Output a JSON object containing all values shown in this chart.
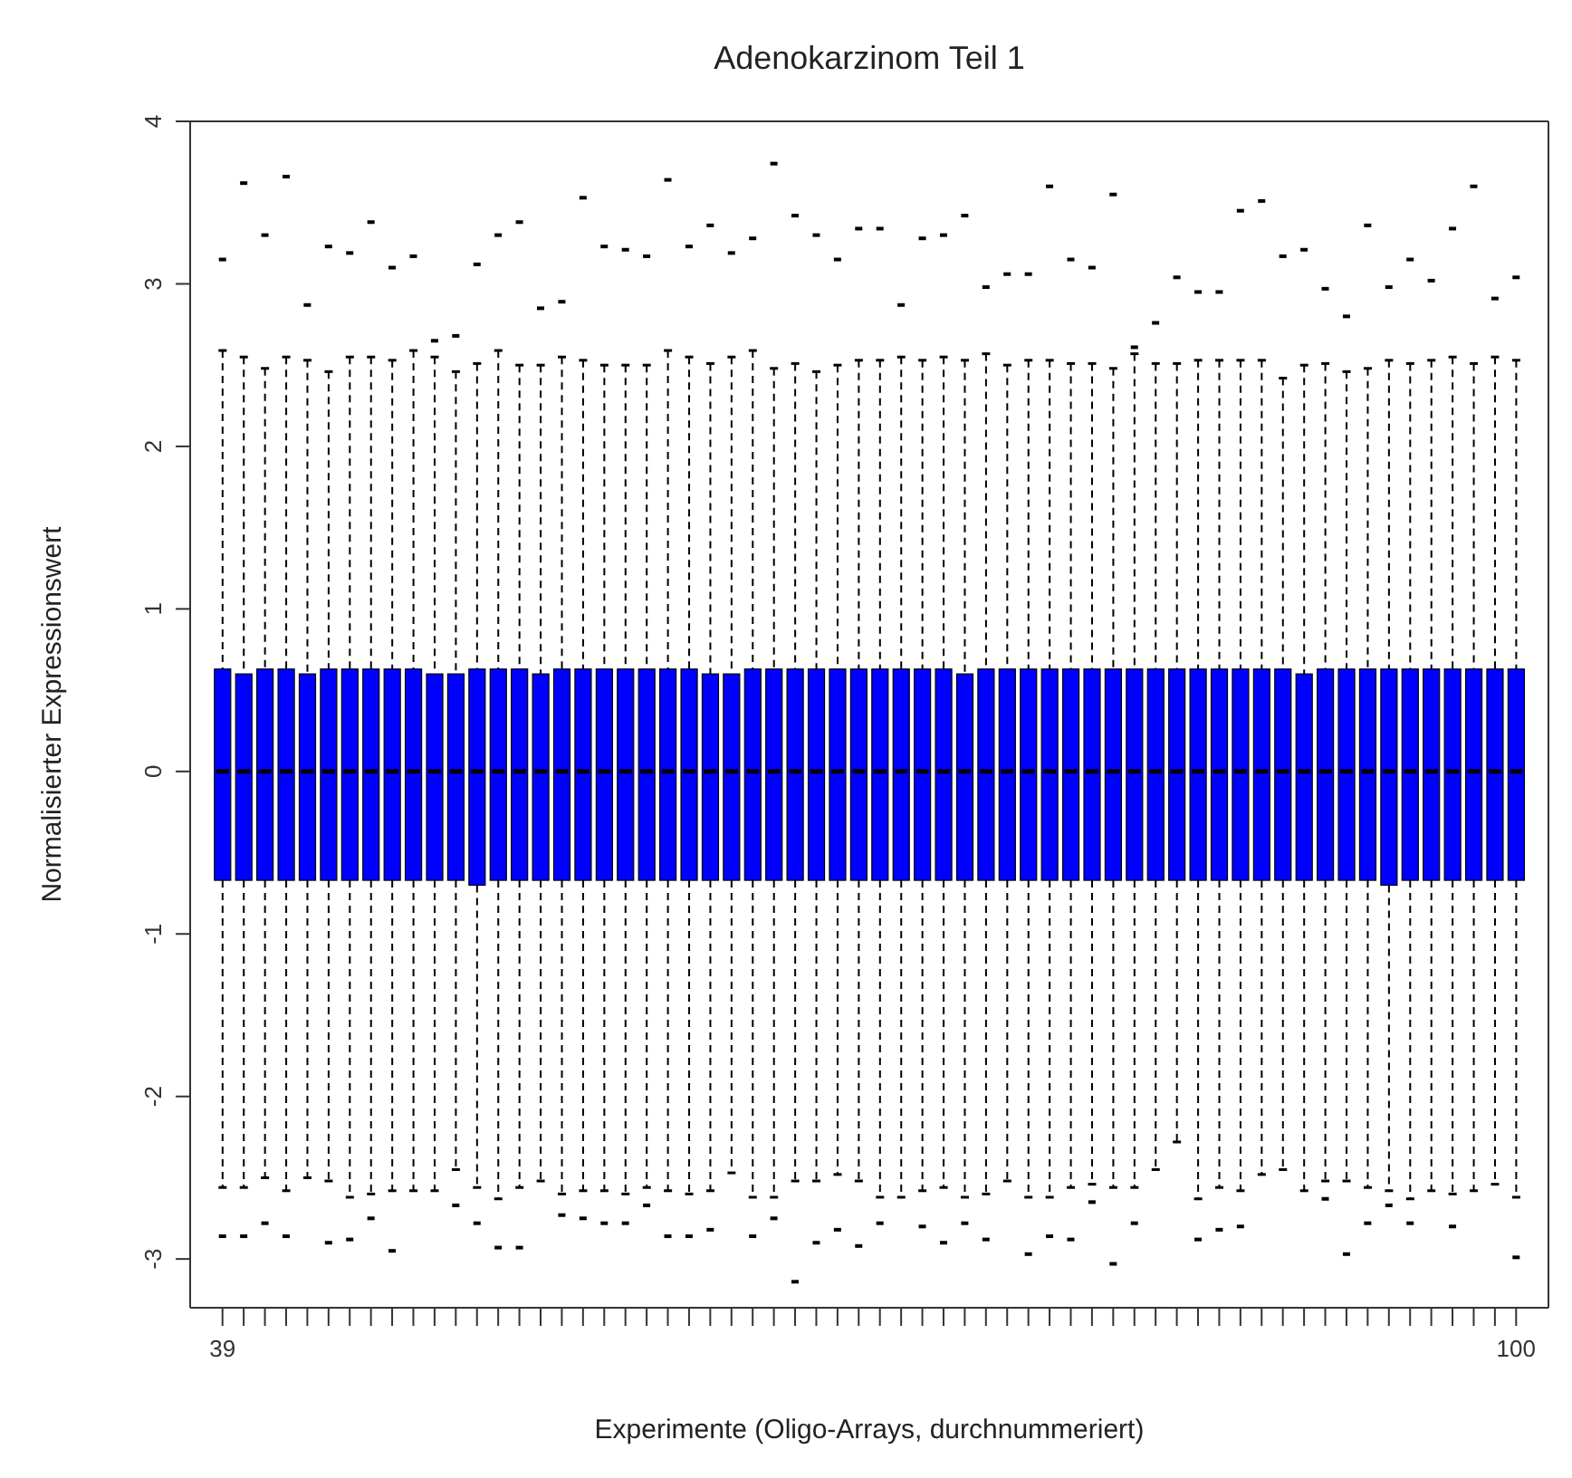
{
  "chart_data": {
    "type": "box",
    "title": "Adenokarzinom Teil 1",
    "xlabel": "Experimente (Oligo-Arrays, durchnummeriert)",
    "ylabel": "Normalisierter Expressionswert",
    "color": "#0000ff",
    "categories": [
      "39",
      null,
      null,
      null,
      null,
      null,
      null,
      null,
      null,
      null,
      null,
      null,
      null,
      null,
      null,
      null,
      null,
      null,
      null,
      null,
      null,
      null,
      null,
      null,
      null,
      null,
      null,
      null,
      null,
      null,
      null,
      null,
      null,
      null,
      null,
      null,
      null,
      null,
      null,
      null,
      null,
      null,
      null,
      null,
      null,
      null,
      null,
      null,
      null,
      null,
      null,
      null,
      null,
      null,
      null,
      null,
      null,
      null,
      null,
      null,
      null,
      "100"
    ],
    "ylim": [
      -3.3,
      4.0
    ],
    "yticks": [
      -3,
      -2,
      -1,
      0,
      1,
      2,
      3,
      4
    ],
    "boxes": [
      {
        "low": -2.56,
        "q1": -0.67,
        "median": 0,
        "q3": 0.63,
        "high": 2.59,
        "outliers": [
          3.15,
          -2.86
        ]
      },
      {
        "low": -2.56,
        "q1": -0.67,
        "median": 0,
        "q3": 0.6,
        "high": 2.55,
        "outliers": [
          3.62,
          -2.86
        ]
      },
      {
        "low": -2.5,
        "q1": -0.67,
        "median": 0,
        "q3": 0.63,
        "high": 2.48,
        "outliers": [
          3.3,
          -2.78
        ]
      },
      {
        "low": -2.58,
        "q1": -0.67,
        "median": 0,
        "q3": 0.63,
        "high": 2.55,
        "outliers": [
          3.66,
          -2.86
        ]
      },
      {
        "low": -2.5,
        "q1": -0.67,
        "median": 0,
        "q3": 0.6,
        "high": 2.53,
        "outliers": [
          2.87
        ]
      },
      {
        "low": -2.52,
        "q1": -0.67,
        "median": 0,
        "q3": 0.63,
        "high": 2.46,
        "outliers": [
          3.23,
          -2.9
        ]
      },
      {
        "low": -2.62,
        "q1": -0.67,
        "median": 0,
        "q3": 0.63,
        "high": 2.55,
        "outliers": [
          3.19,
          -2.88
        ]
      },
      {
        "low": -2.6,
        "q1": -0.67,
        "median": 0,
        "q3": 0.63,
        "high": 2.55,
        "outliers": [
          3.38,
          -2.75
        ]
      },
      {
        "low": -2.58,
        "q1": -0.67,
        "median": 0,
        "q3": 0.63,
        "high": 2.53,
        "outliers": [
          3.1,
          -2.95
        ]
      },
      {
        "low": -2.58,
        "q1": -0.67,
        "median": 0,
        "q3": 0.63,
        "high": 2.59,
        "outliers": [
          3.17
        ]
      },
      {
        "low": -2.58,
        "q1": -0.67,
        "median": 0,
        "q3": 0.6,
        "high": 2.55,
        "outliers": [
          2.65
        ]
      },
      {
        "low": -2.45,
        "q1": -0.67,
        "median": 0,
        "q3": 0.6,
        "high": 2.46,
        "outliers": [
          2.68,
          -2.67
        ]
      },
      {
        "low": -2.56,
        "q1": -0.7,
        "median": 0,
        "q3": 0.63,
        "high": 2.51,
        "outliers": [
          3.12,
          -2.78
        ]
      },
      {
        "low": -2.63,
        "q1": -0.67,
        "median": 0,
        "q3": 0.63,
        "high": 2.59,
        "outliers": [
          3.3,
          -2.93
        ]
      },
      {
        "low": -2.56,
        "q1": -0.67,
        "median": 0,
        "q3": 0.63,
        "high": 2.5,
        "outliers": [
          3.38,
          -2.93
        ]
      },
      {
        "low": -2.52,
        "q1": -0.67,
        "median": 0,
        "q3": 0.6,
        "high": 2.5,
        "outliers": [
          2.85
        ]
      },
      {
        "low": -2.6,
        "q1": -0.67,
        "median": 0,
        "q3": 0.63,
        "high": 2.55,
        "outliers": [
          2.89,
          -2.73
        ]
      },
      {
        "low": -2.58,
        "q1": -0.67,
        "median": 0,
        "q3": 0.63,
        "high": 2.53,
        "outliers": [
          3.53,
          -2.75
        ]
      },
      {
        "low": -2.58,
        "q1": -0.67,
        "median": 0,
        "q3": 0.63,
        "high": 2.5,
        "outliers": [
          3.23,
          -2.78
        ]
      },
      {
        "low": -2.6,
        "q1": -0.67,
        "median": 0,
        "q3": 0.63,
        "high": 2.5,
        "outliers": [
          3.21,
          -2.78
        ]
      },
      {
        "low": -2.56,
        "q1": -0.67,
        "median": 0,
        "q3": 0.63,
        "high": 2.5,
        "outliers": [
          3.17,
          -2.67
        ]
      },
      {
        "low": -2.58,
        "q1": -0.67,
        "median": 0,
        "q3": 0.63,
        "high": 2.59,
        "outliers": [
          3.64,
          -2.86
        ]
      },
      {
        "low": -2.6,
        "q1": -0.67,
        "median": 0,
        "q3": 0.63,
        "high": 2.55,
        "outliers": [
          3.23,
          -2.86
        ]
      },
      {
        "low": -2.58,
        "q1": -0.67,
        "median": 0,
        "q3": 0.6,
        "high": 2.51,
        "outliers": [
          3.36,
          -2.82
        ]
      },
      {
        "low": -2.47,
        "q1": -0.67,
        "median": 0,
        "q3": 0.6,
        "high": 2.55,
        "outliers": [
          3.19
        ]
      },
      {
        "low": -2.62,
        "q1": -0.67,
        "median": 0,
        "q3": 0.63,
        "high": 2.59,
        "outliers": [
          3.28,
          -2.86
        ]
      },
      {
        "low": -2.62,
        "q1": -0.67,
        "median": 0,
        "q3": 0.63,
        "high": 2.48,
        "outliers": [
          3.74,
          -2.75
        ]
      },
      {
        "low": -2.52,
        "q1": -0.67,
        "median": 0,
        "q3": 0.63,
        "high": 2.51,
        "outliers": [
          3.42,
          -3.14
        ]
      },
      {
        "low": -2.52,
        "q1": -0.67,
        "median": 0,
        "q3": 0.63,
        "high": 2.46,
        "outliers": [
          3.3,
          -2.9
        ]
      },
      {
        "low": -2.48,
        "q1": -0.67,
        "median": 0,
        "q3": 0.63,
        "high": 2.5,
        "outliers": [
          3.15,
          -2.82
        ]
      },
      {
        "low": -2.52,
        "q1": -0.67,
        "median": 0,
        "q3": 0.63,
        "high": 2.53,
        "outliers": [
          3.34,
          -2.92
        ]
      },
      {
        "low": -2.62,
        "q1": -0.67,
        "median": 0,
        "q3": 0.63,
        "high": 2.53,
        "outliers": [
          3.34,
          -2.78
        ]
      },
      {
        "low": -2.62,
        "q1": -0.67,
        "median": 0,
        "q3": 0.63,
        "high": 2.55,
        "outliers": [
          2.87
        ]
      },
      {
        "low": -2.58,
        "q1": -0.67,
        "median": 0,
        "q3": 0.63,
        "high": 2.53,
        "outliers": [
          3.28,
          -2.8
        ]
      },
      {
        "low": -2.56,
        "q1": -0.67,
        "median": 0,
        "q3": 0.63,
        "high": 2.55,
        "outliers": [
          3.3,
          -2.9
        ]
      },
      {
        "low": -2.62,
        "q1": -0.67,
        "median": 0,
        "q3": 0.6,
        "high": 2.53,
        "outliers": [
          3.42,
          -2.78
        ]
      },
      {
        "low": -2.6,
        "q1": -0.67,
        "median": 0,
        "q3": 0.63,
        "high": 2.57,
        "outliers": [
          2.98,
          -2.88
        ]
      },
      {
        "low": -2.52,
        "q1": -0.67,
        "median": 0,
        "q3": 0.63,
        "high": 2.5,
        "outliers": [
          3.06
        ]
      },
      {
        "low": -2.62,
        "q1": -0.67,
        "median": 0,
        "q3": 0.63,
        "high": 2.53,
        "outliers": [
          3.06,
          -2.97
        ]
      },
      {
        "low": -2.62,
        "q1": -0.67,
        "median": 0,
        "q3": 0.63,
        "high": 2.53,
        "outliers": [
          3.6,
          -2.86
        ]
      },
      {
        "low": -2.56,
        "q1": -0.67,
        "median": 0,
        "q3": 0.63,
        "high": 2.51,
        "outliers": [
          3.15,
          -2.88
        ]
      },
      {
        "low": -2.54,
        "q1": -0.67,
        "median": 0,
        "q3": 0.63,
        "high": 2.51,
        "outliers": [
          3.1,
          -2.65
        ]
      },
      {
        "low": -2.56,
        "q1": -0.67,
        "median": 0,
        "q3": 0.63,
        "high": 2.48,
        "outliers": [
          3.55,
          -3.03
        ]
      },
      {
        "low": -2.56,
        "q1": -0.67,
        "median": 0,
        "q3": 0.63,
        "high": 2.57,
        "outliers": [
          2.61,
          -2.78
        ]
      },
      {
        "low": -2.45,
        "q1": -0.67,
        "median": 0,
        "q3": 0.63,
        "high": 2.51,
        "outliers": [
          2.76
        ]
      },
      {
        "low": -2.28,
        "q1": -0.67,
        "median": 0,
        "q3": 0.63,
        "high": 2.51,
        "outliers": [
          3.04
        ]
      },
      {
        "low": -2.63,
        "q1": -0.67,
        "median": 0,
        "q3": 0.63,
        "high": 2.53,
        "outliers": [
          2.95,
          -2.88
        ]
      },
      {
        "low": -2.56,
        "q1": -0.67,
        "median": 0,
        "q3": 0.63,
        "high": 2.53,
        "outliers": [
          2.95,
          -2.82
        ]
      },
      {
        "low": -2.58,
        "q1": -0.67,
        "median": 0,
        "q3": 0.63,
        "high": 2.53,
        "outliers": [
          3.45,
          -2.8
        ]
      },
      {
        "low": -2.48,
        "q1": -0.67,
        "median": 0,
        "q3": 0.63,
        "high": 2.53,
        "outliers": [
          3.51
        ]
      },
      {
        "low": -2.45,
        "q1": -0.67,
        "median": 0,
        "q3": 0.63,
        "high": 2.42,
        "outliers": [
          3.17
        ]
      },
      {
        "low": -2.58,
        "q1": -0.67,
        "median": 0,
        "q3": 0.6,
        "high": 2.5,
        "outliers": [
          3.21
        ]
      },
      {
        "low": -2.52,
        "q1": -0.67,
        "median": 0,
        "q3": 0.63,
        "high": 2.51,
        "outliers": [
          2.97,
          -2.63
        ]
      },
      {
        "low": -2.52,
        "q1": -0.67,
        "median": 0,
        "q3": 0.63,
        "high": 2.46,
        "outliers": [
          2.8,
          -2.97
        ]
      },
      {
        "low": -2.56,
        "q1": -0.67,
        "median": 0,
        "q3": 0.63,
        "high": 2.48,
        "outliers": [
          3.36,
          -2.78
        ]
      },
      {
        "low": -2.58,
        "q1": -0.7,
        "median": 0,
        "q3": 0.63,
        "high": 2.53,
        "outliers": [
          2.98,
          -2.67
        ]
      },
      {
        "low": -2.63,
        "q1": -0.67,
        "median": 0,
        "q3": 0.63,
        "high": 2.51,
        "outliers": [
          3.15,
          -2.78
        ]
      },
      {
        "low": -2.58,
        "q1": -0.67,
        "median": 0,
        "q3": 0.63,
        "high": 2.53,
        "outliers": [
          3.02
        ]
      },
      {
        "low": -2.6,
        "q1": -0.67,
        "median": 0,
        "q3": 0.63,
        "high": 2.55,
        "outliers": [
          3.34,
          -2.8
        ]
      },
      {
        "low": -2.58,
        "q1": -0.67,
        "median": 0,
        "q3": 0.63,
        "high": 2.51,
        "outliers": [
          3.6
        ]
      },
      {
        "low": -2.54,
        "q1": -0.67,
        "median": 0,
        "q3": 0.63,
        "high": 2.55,
        "outliers": [
          2.91
        ]
      },
      {
        "low": -2.62,
        "q1": -0.67,
        "median": 0,
        "q3": 0.63,
        "high": 2.53,
        "outliers": [
          3.04,
          -2.99
        ]
      }
    ]
  }
}
